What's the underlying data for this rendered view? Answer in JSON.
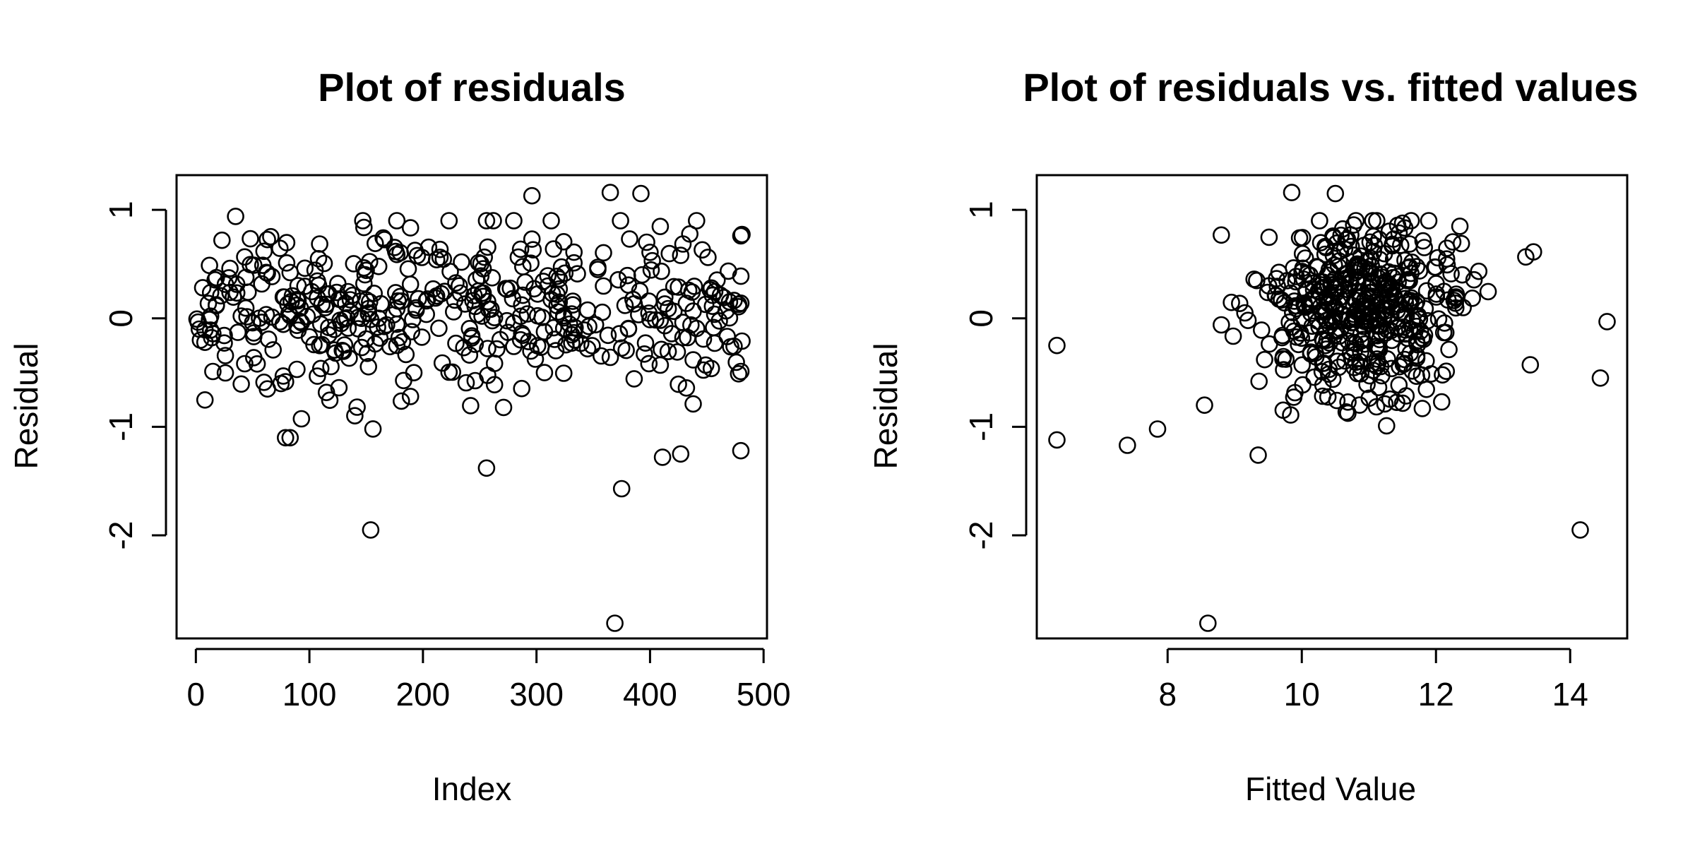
{
  "colors": {
    "background": "#ffffff",
    "ink": "#000000"
  },
  "chart_data": [
    {
      "type": "scatter",
      "title": "Plot of residuals",
      "xlabel": "Index",
      "ylabel": "Residual",
      "xlim": [
        -17,
        503
      ],
      "ylim": [
        -2.95,
        1.32
      ],
      "xticks": [
        0,
        100,
        200,
        300,
        400,
        500
      ],
      "yticks": [
        -2,
        -1,
        0,
        1
      ],
      "grid": false,
      "marker": "open-circle",
      "highlighted_points": {
        "x": [
          35,
          154,
          256,
          296,
          365,
          369,
          375,
          392,
          411,
          427,
          480
        ],
        "y": [
          0.94,
          -1.95,
          -1.38,
          1.13,
          1.16,
          -2.81,
          -1.57,
          1.15,
          -1.28,
          -1.25,
          -1.22
        ]
      },
      "n_points": 481
    },
    {
      "type": "scatter",
      "title": "Plot of residuals vs. fitted values",
      "xlabel": "Fitted Value",
      "ylabel": "Residual",
      "xlim": [
        6.05,
        14.85
      ],
      "ylim": [
        -2.95,
        1.32
      ],
      "xticks": [
        8,
        10,
        12,
        14
      ],
      "yticks": [
        -2,
        -1,
        0,
        1
      ],
      "grid": false,
      "marker": "open-circle",
      "highlighted_points": {
        "x": [
          6.35,
          6.35,
          7.4,
          7.85,
          8.55,
          8.6,
          9.35,
          14.15,
          14.45,
          14.55,
          9.85,
          10.5
        ],
        "y": [
          -0.25,
          -1.12,
          -1.17,
          -1.02,
          -0.8,
          -2.81,
          -1.26,
          -1.95,
          -0.55,
          -0.03,
          1.16,
          1.15
        ]
      },
      "n_points": 481
    }
  ]
}
